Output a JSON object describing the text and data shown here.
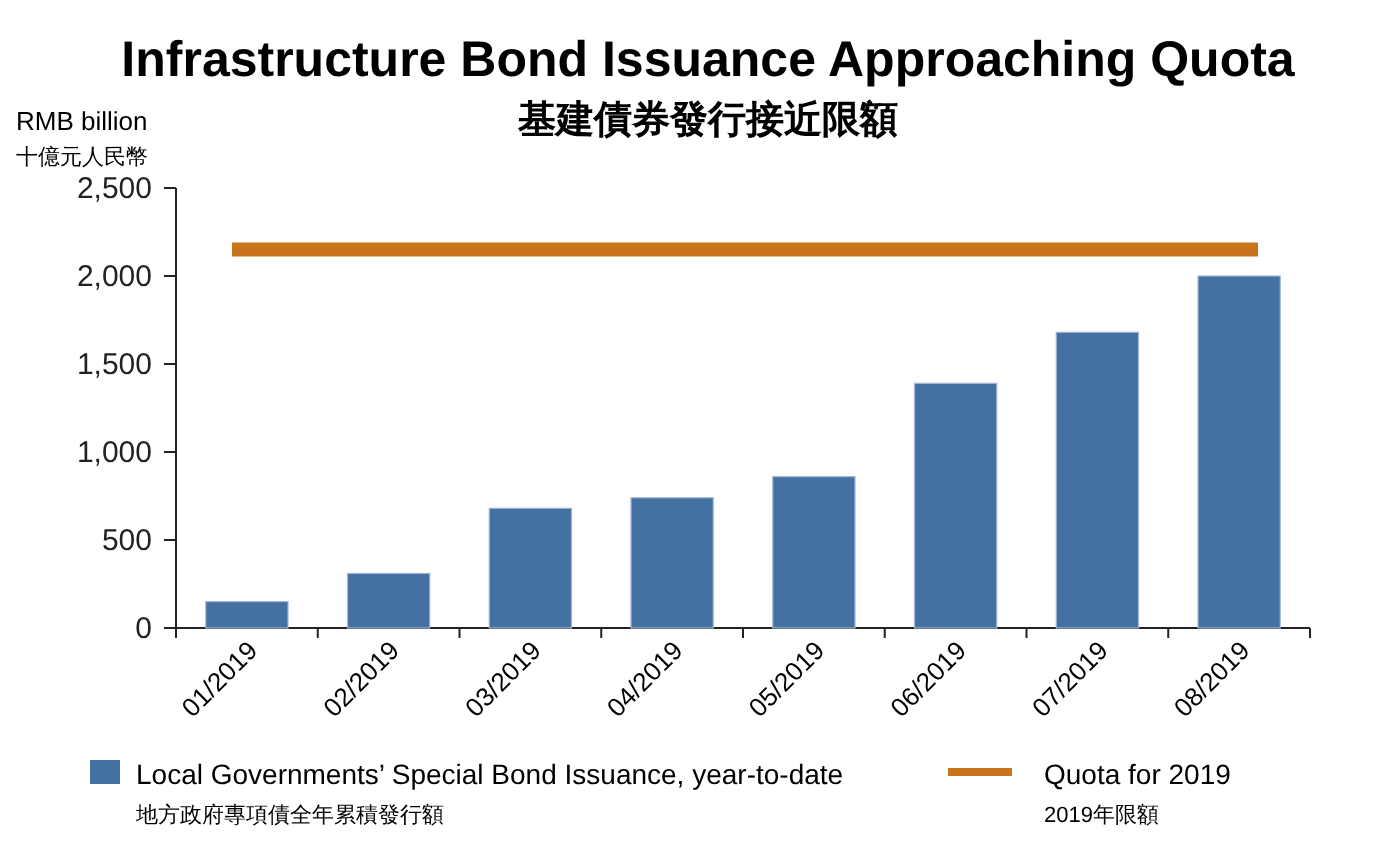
{
  "chart_data": {
    "type": "bar",
    "title": "Infrastructure Bond Issuance Approaching Quota",
    "subtitle": "基建債券發行接近限額",
    "ylabel": "RMB billion",
    "categories": [
      "01/2019",
      "02/2019",
      "03/2019",
      "04/2019",
      "05/2019",
      "06/2019",
      "07/2019",
      "08/2019"
    ],
    "series": [
      {
        "name": "Local Governments’ Special Bond Issuance, year-to-date",
        "color": "#4470a2",
        "values": [
          150,
          310,
          680,
          740,
          860,
          1390,
          1680,
          2000
        ]
      }
    ],
    "ylim": [
      0,
      2500
    ],
    "yticks": [
      0,
      {
        "value": 500,
        "label": "500"
      },
      {
        "value": 1000,
        "label": "1,000"
      },
      {
        "value": 1500,
        "label": "1,500"
      },
      {
        "value": 2000,
        "label": "2,000"
      },
      {
        "value": 2500,
        "label": "2,500"
      }
    ],
    "ref_lines": [
      {
        "axis": "y",
        "value": 2150,
        "label": "Quota for 2019",
        "color": "#c8741a"
      }
    ],
    "annotations": [
      "十億元人民幣",
      "地方政府專項債全年累積發行額",
      "2019年限額"
    ],
    "legend": "bottom",
    "grid": false
  }
}
